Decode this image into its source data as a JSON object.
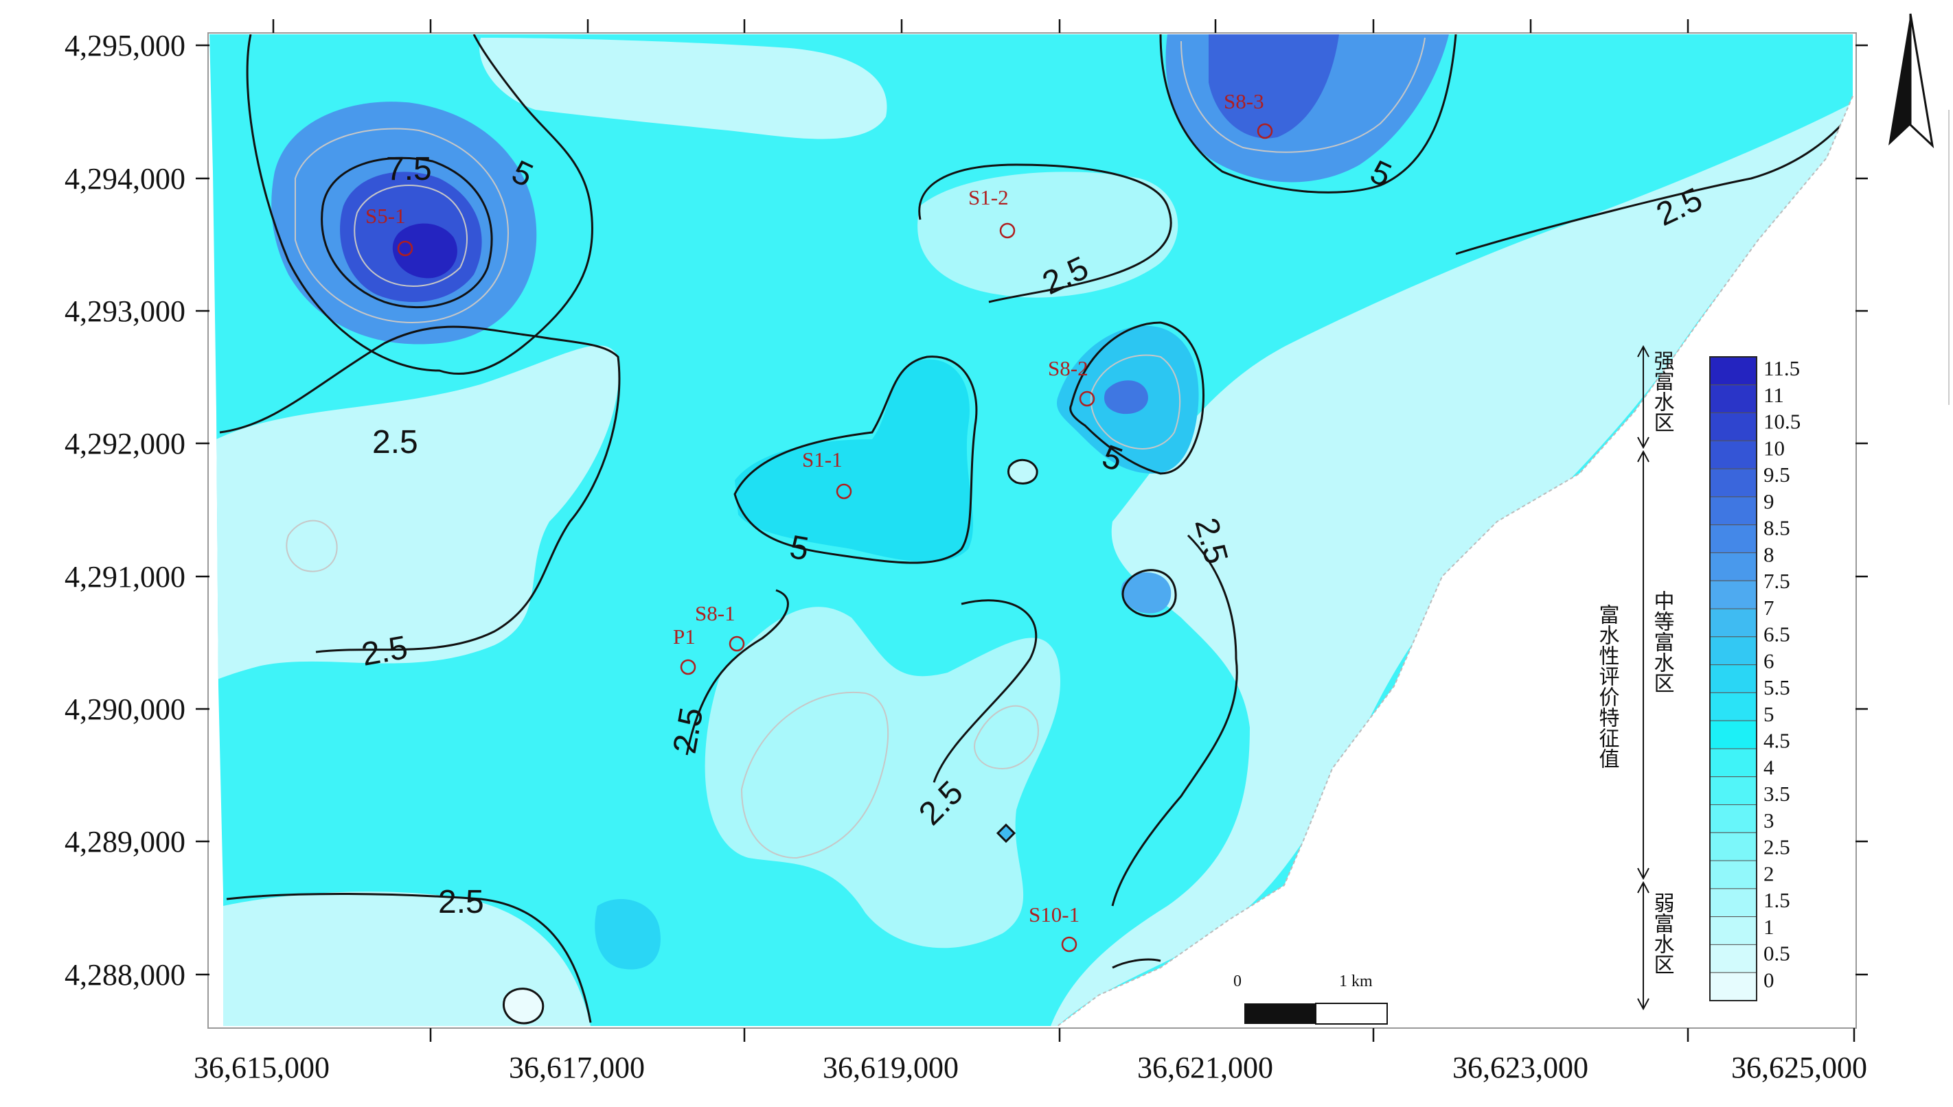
{
  "map": {
    "x_ticks": [
      "36,615,000",
      "36,617,000",
      "36,619,000",
      "36,621,000",
      "36,623,000",
      "36,625,000"
    ],
    "y_ticks": [
      "4,295,000",
      "4,294,000",
      "4,293,000",
      "4,292,000",
      "4,291,000",
      "4,290,000",
      "4,289,000",
      "4,288,000"
    ],
    "contour_labels": [
      "7.5",
      "5",
      "5",
      "5",
      "5",
      "2.5",
      "2.5",
      "2.5",
      "2.5",
      "2.5",
      "2.5",
      "2.5",
      "2.5"
    ],
    "wells": [
      "S5-1",
      "S1-2",
      "S8-3",
      "S8-2",
      "S1-1",
      "S8-1",
      "P1",
      "S10-1"
    ]
  },
  "legend": {
    "ticks": [
      "11.5",
      "11",
      "10.5",
      "10",
      "9.5",
      "9",
      "8.5",
      "8",
      "7.5",
      "7",
      "6.5",
      "6",
      "5.5",
      "5",
      "4.5",
      "4",
      "3.5",
      "3",
      "2.5",
      "2",
      "1.5",
      "1",
      "0.5",
      "0"
    ],
    "colors": [
      "#2424c0",
      "#2a35c8",
      "#2f45cf",
      "#3455d6",
      "#3a66dc",
      "#3f77e2",
      "#4488e8",
      "#4999ec",
      "#4eaaf0",
      "#3fbbf2",
      "#33c8f3",
      "#2ad6f5",
      "#2ae3f7",
      "#1cf0f7",
      "#3ff3f8",
      "#52f5f9",
      "#67f6fa",
      "#7cf7fa",
      "#92f8fb",
      "#a8f9fc",
      "#bdfafc",
      "#d2fbfd",
      "#e6fcfe"
    ],
    "title": "富水性评价特征值",
    "zones": {
      "strong": "强富水区",
      "medium": "中等富水区",
      "weak": "弱富水区"
    }
  },
  "scale": {
    "zero": "0",
    "one": "1 km"
  },
  "north_arrow": {
    "icon": "north-arrow-icon"
  }
}
